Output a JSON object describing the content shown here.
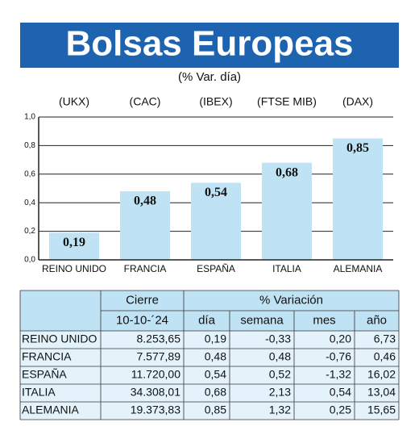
{
  "chart_data": {
    "type": "bar",
    "title": "Bolsas Europeas",
    "subtitle": "(% Var. día)",
    "index_labels": [
      "(UKX)",
      "(CAC)",
      "(IBEX)",
      "(FTSE MIB)",
      "(DAX)"
    ],
    "categories": [
      "REINO UNIDO",
      "FRANCIA",
      "ESPAÑA",
      "ITALIA",
      "ALEMANIA"
    ],
    "values": [
      0.19,
      0.48,
      0.54,
      0.68,
      0.85
    ],
    "value_labels": [
      "0,19",
      "0,48",
      "0,54",
      "0,68",
      "0,85"
    ],
    "color": "#bfe3f5",
    "ylim": [
      0,
      1.0
    ],
    "yticks": [
      {
        "value": 0,
        "label": "0,0"
      },
      {
        "value": 0.2,
        "label": "0,2"
      },
      {
        "value": 0.4,
        "label": "0,4"
      },
      {
        "value": 0.6,
        "label": "0,6"
      },
      {
        "value": 0.8,
        "label": "0,8"
      },
      {
        "value": 1.0,
        "label": "1,0"
      }
    ],
    "grid": true
  },
  "table": {
    "header_top": [
      "Cierre",
      "% Variación"
    ],
    "header": [
      "10-10-´24",
      "día",
      "semana",
      "mes",
      "año"
    ],
    "rows": [
      [
        "REINO UNIDO",
        "8.253,65",
        "0,19",
        "-0,33",
        "0,20",
        "6,73"
      ],
      [
        "FRANCIA",
        "7.577,89",
        "0,48",
        "0,48",
        "-0,76",
        "0,46"
      ],
      [
        "ESPAÑA",
        "11.720,00",
        "0,54",
        "0,52",
        "-1,32",
        "16,02"
      ],
      [
        "ITALIA",
        "34.308,01",
        "0,68",
        "2,13",
        "0,54",
        "13,04"
      ],
      [
        "ALEMANIA",
        "19.373,83",
        "0,85",
        "1,32",
        "0,25",
        "15,65"
      ]
    ]
  }
}
